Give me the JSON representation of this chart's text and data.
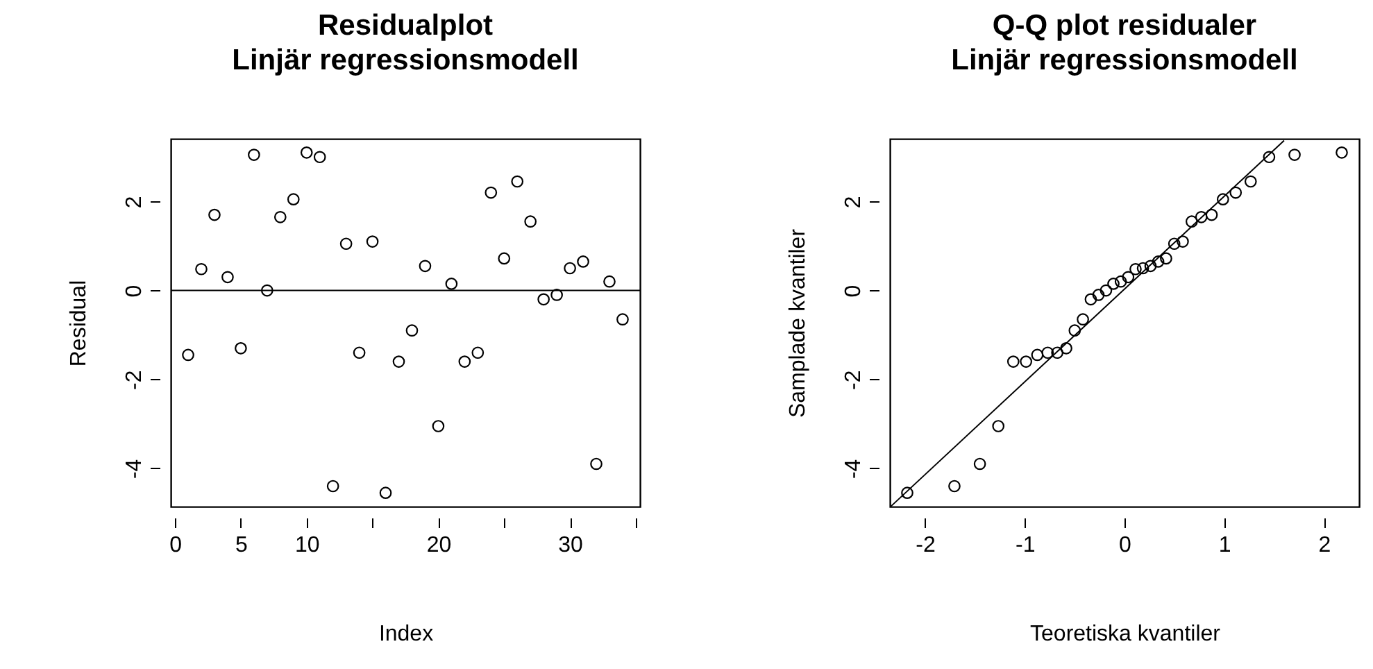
{
  "chart_data": [
    {
      "type": "scatter",
      "title": "Residualplot",
      "subtitle": "Linjär regressionsmodell",
      "xlabel": "Index",
      "ylabel": "Residual",
      "marker": "circle",
      "grid": false,
      "x": [
        1,
        2,
        3,
        4,
        5,
        6,
        7,
        8,
        9,
        10,
        11,
        12,
        13,
        14,
        15,
        16,
        17,
        18,
        19,
        20,
        21,
        22,
        23,
        24,
        25,
        26,
        27,
        28,
        29,
        30,
        31,
        32,
        33,
        34
      ],
      "values": [
        -1.45,
        0.48,
        1.7,
        0.3,
        -1.3,
        3.05,
        0.0,
        1.65,
        2.05,
        3.1,
        3.0,
        -4.4,
        1.05,
        -1.4,
        1.1,
        -4.55,
        -1.6,
        -0.9,
        0.55,
        -3.05,
        0.15,
        -1.6,
        -1.4,
        2.2,
        0.72,
        2.45,
        1.55,
        -0.2,
        -0.1,
        0.5,
        0.65,
        -3.9,
        0.2,
        -0.65
      ],
      "xlim": [
        -0.32,
        35.32
      ],
      "ylim": [
        -4.86,
        3.41
      ],
      "xticks": [
        0,
        5,
        10,
        {
          "value": 15,
          "label": null
        },
        20,
        {
          "value": 25,
          "label": null
        },
        30,
        {
          "value": 35,
          "label": null
        }
      ],
      "yticks": [
        -4,
        -2,
        0,
        2
      ],
      "ref_lines": [
        {
          "axis": "y",
          "value": 0,
          "color": "#000000",
          "line_style": "solid"
        }
      ]
    },
    {
      "type": "scatter",
      "title": "Q-Q plot residualer",
      "subtitle": "Linjär regressionsmodell",
      "xlabel": "Teoretiska kvantiler",
      "ylabel": "Samplade kvantiler",
      "grid": false,
      "series": [
        {
          "type": "scatter",
          "marker": "circle",
          "color": "#000000",
          "x": [
            -2.178,
            -1.705,
            -1.45,
            -1.265,
            -1.115,
            -0.987,
            -0.874,
            -0.77,
            -0.674,
            -0.584,
            -0.499,
            -0.417,
            -0.338,
            -0.261,
            -0.185,
            -0.111,
            -0.037,
            0.037,
            0.111,
            0.185,
            0.261,
            0.338,
            0.417,
            0.499,
            0.584,
            0.674,
            0.77,
            0.874,
            0.987,
            1.115,
            1.265,
            1.45,
            1.705,
            2.178
          ],
          "values": [
            -4.55,
            -4.4,
            -3.9,
            -3.05,
            -1.6,
            -1.6,
            -1.45,
            -1.4,
            -1.4,
            -1.3,
            -0.9,
            -0.65,
            -0.2,
            -0.1,
            0.0,
            0.15,
            0.2,
            0.3,
            0.48,
            0.5,
            0.55,
            0.65,
            0.72,
            1.05,
            1.1,
            1.55,
            1.65,
            1.7,
            2.05,
            2.2,
            2.45,
            3.0,
            3.05,
            3.1
          ]
        },
        {
          "type": "line",
          "color": "#000000",
          "line_style": "solid",
          "x": [
            -2.34,
            1.6
          ],
          "values": [
            -4.85,
            3.37
          ]
        }
      ],
      "xlim": [
        -2.352,
        2.352
      ],
      "ylim": [
        -4.86,
        3.41
      ],
      "xticks": [
        -2,
        -1,
        0,
        1,
        2
      ],
      "yticks": [
        -4,
        -2,
        0,
        2
      ]
    }
  ]
}
